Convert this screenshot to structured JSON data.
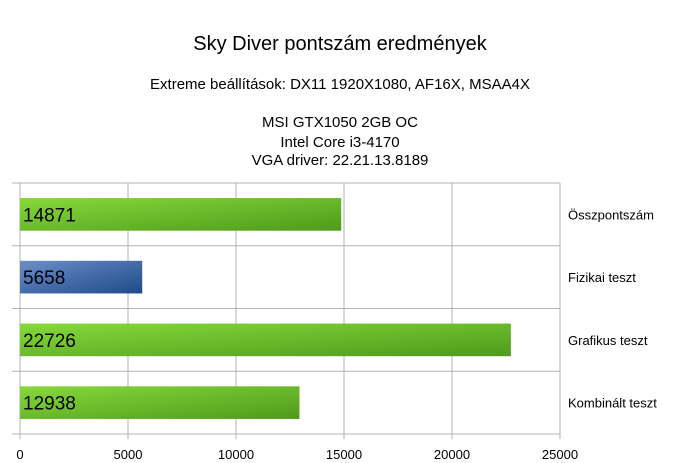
{
  "chart_data": {
    "type": "bar",
    "orientation": "horizontal",
    "title": "Sky Diver pontszám eredmények",
    "subtitle": "Extreme beállítások: DX11 1920X1080, AF16X, MSAA4X",
    "info_lines": [
      "MSI GTX1050 2GB OC",
      "Intel Core i3-4170",
      "VGA driver: 22.21.13.8189"
    ],
    "categories": [
      "Összpontszám",
      "Fizikai teszt",
      "Grafikus teszt",
      "Kombinált teszt"
    ],
    "values": [
      14871,
      5658,
      22726,
      12938
    ],
    "data_labels": [
      "14871",
      "5658",
      "22726",
      "12938"
    ],
    "bar_colors": [
      "green",
      "blue",
      "green",
      "green"
    ],
    "colors": {
      "green_light": "#86d93a",
      "green_dark": "#4f9a1c",
      "blue_light": "#6b8fc8",
      "blue_dark": "#1f4a8a",
      "grid": "#b3b3b3"
    },
    "xlim": [
      0,
      25000
    ],
    "xticks": [
      0,
      5000,
      10000,
      15000,
      20000,
      25000
    ],
    "grid": true,
    "category_labels_position": "right"
  }
}
